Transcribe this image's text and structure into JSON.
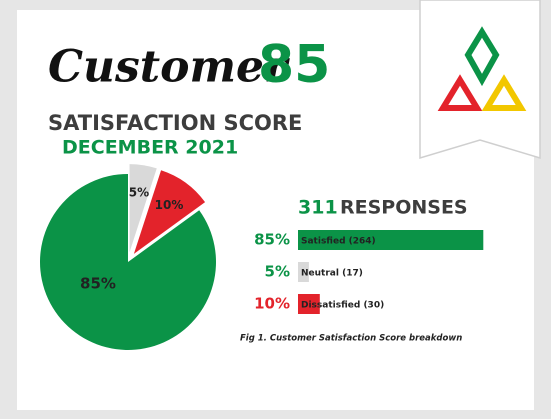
{
  "header": {
    "title": "Customer",
    "score": 85,
    "subtitle": "SATISFACTION SCORE",
    "date": "DECEMBER 2021"
  },
  "chart_data": [
    {
      "type": "pie",
      "values": [
        85,
        5,
        10
      ],
      "value_labels": [
        "85%",
        "5%",
        "10%"
      ],
      "colors": [
        "#0b9347",
        "#d9d9d9",
        "#e3232b"
      ]
    },
    {
      "type": "bar",
      "total": 311,
      "title": "RESPONSES",
      "categories": [
        "Satisfied (264)",
        "Neutral (17)",
        "Dissatisfied (30)"
      ],
      "values": [
        85,
        5,
        10
      ],
      "value_labels": [
        "85%",
        "5%",
        "10%"
      ],
      "colors": [
        "#0b9347",
        "#d9d9d9",
        "#e3232b"
      ],
      "xlim": [
        0,
        100
      ],
      "caption": "Fig 1. Customer Satisfaction Score breakdown"
    }
  ]
}
